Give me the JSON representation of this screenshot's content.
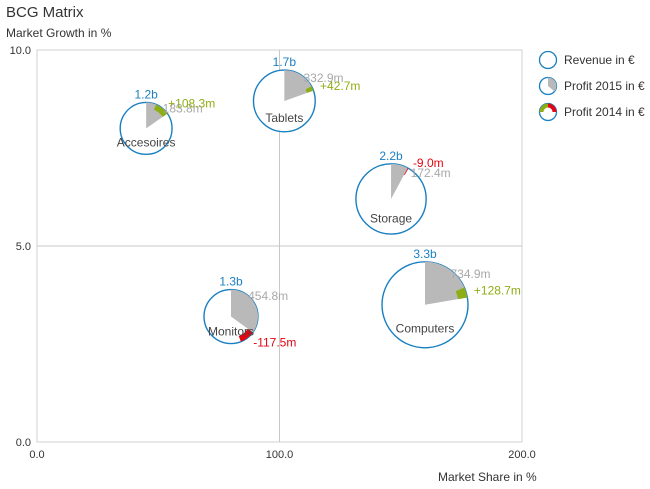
{
  "chart_data": {
    "type": "bubble",
    "title": "BCG Matrix",
    "ylabel": "Market Growth in %",
    "xlabel": "Market Share in %",
    "xlim": [
      0,
      200
    ],
    "ylim": [
      0,
      10
    ],
    "x_ticks": [
      "0.0",
      "100.0",
      "200.0"
    ],
    "y_ticks": [
      "0.0",
      "5.0",
      "10.0"
    ],
    "divider_x": 100,
    "divider_y": 5,
    "colors": {
      "revenue": "#1a7fc1",
      "profit_2015": "#b9b9b9",
      "profit_positive": "#8fad15",
      "profit_negative": "#e30613"
    },
    "legend": [
      {
        "label": "Revenue in €",
        "icon": "revenue-circle-icon"
      },
      {
        "label": "Profit 2015 in €",
        "icon": "profit-2015-pie-icon"
      },
      {
        "label": "Profit 2014 in €",
        "icon": "profit-2014-delta-icon"
      }
    ],
    "bubbles": [
      {
        "name": "Accesoires",
        "x": 45,
        "y": 8.0,
        "revenue": 1.2,
        "revenue_label": "1.2b",
        "profit_2015": 183.8,
        "profit_2015_label": "183.8m",
        "delta": 108.3,
        "delta_label": "+108.3m"
      },
      {
        "name": "Tablets",
        "x": 102,
        "y": 8.7,
        "revenue": 1.7,
        "revenue_label": "1.7b",
        "profit_2015": 332.9,
        "profit_2015_label": "332.9m",
        "delta": 42.7,
        "delta_label": "+42.7m"
      },
      {
        "name": "Storage",
        "x": 146,
        "y": 6.2,
        "revenue": 2.2,
        "revenue_label": "2.2b",
        "profit_2015": 172.4,
        "profit_2015_label": "172.4m",
        "delta": -9.0,
        "delta_label": "-9.0m"
      },
      {
        "name": "Monitors",
        "x": 80,
        "y": 3.2,
        "revenue": 1.3,
        "revenue_label": "1.3b",
        "profit_2015": 454.8,
        "profit_2015_label": "454.8m",
        "delta": -117.5,
        "delta_label": "-117.5m"
      },
      {
        "name": "Computers",
        "x": 160,
        "y": 3.5,
        "revenue": 3.3,
        "revenue_label": "3.3b",
        "profit_2015": 734.9,
        "profit_2015_label": "734.9m",
        "delta": 128.7,
        "delta_label": "+128.7m"
      }
    ]
  }
}
